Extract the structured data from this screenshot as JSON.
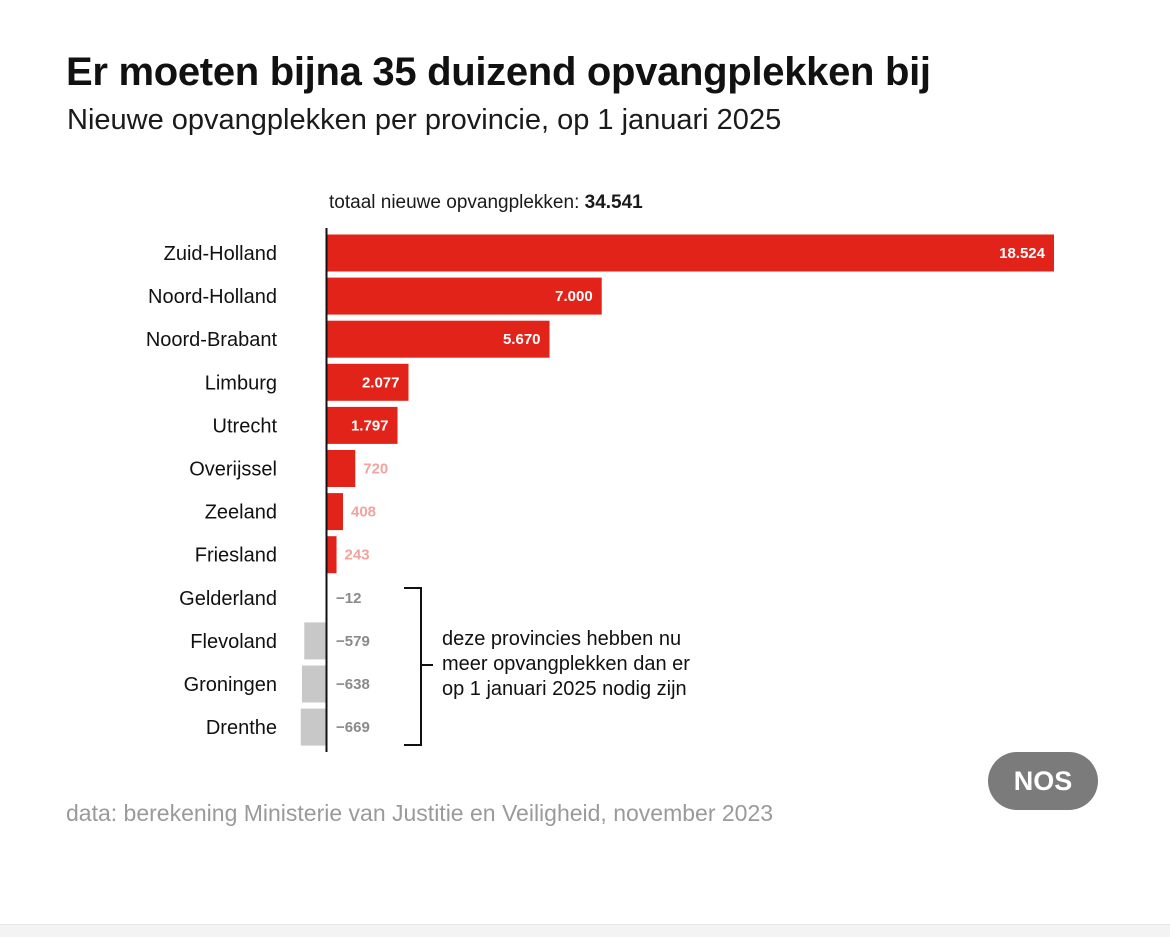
{
  "title": "Er moeten bijna 35 duizend opvangplekken bij",
  "subtitle": "Nieuwe opvangplekken per provincie, op 1 januari 2025",
  "source": "data: berekening Ministerie van Justitie en Veiligheid, november 2023",
  "logo_text": "NOS",
  "colors": {
    "positive": "#e2231a",
    "negative": "#c8c8c8",
    "label_light": "#f2a3a0",
    "label_negative": "#8a8a8a"
  },
  "chart_data": {
    "type": "bar",
    "orientation": "horizontal",
    "total_label": "totaal nieuwe opvangplekken:",
    "total_value": "34.541",
    "categories": [
      "Zuid-Holland",
      "Noord-Holland",
      "Noord-Brabant",
      "Limburg",
      "Utrecht",
      "Overijssel",
      "Zeeland",
      "Friesland",
      "Gelderland",
      "Flevoland",
      "Groningen",
      "Drenthe"
    ],
    "values": [
      18524,
      7000,
      5670,
      2077,
      1797,
      720,
      408,
      243,
      -12,
      -579,
      -638,
      -669
    ],
    "value_labels": [
      "18.524",
      "7.000",
      "5.670",
      "2.077",
      "1.797",
      "720",
      "408",
      "243",
      "−12",
      "−579",
      "−638",
      "−669"
    ],
    "xlim": [
      -669,
      18524
    ],
    "annotation": {
      "lines": [
        "deze provincies hebben nu",
        "meer opvangplekken dan er",
        "op 1 januari 2025 nodig zijn"
      ],
      "applies_to": [
        "Gelderland",
        "Flevoland",
        "Groningen",
        "Drenthe"
      ]
    }
  }
}
